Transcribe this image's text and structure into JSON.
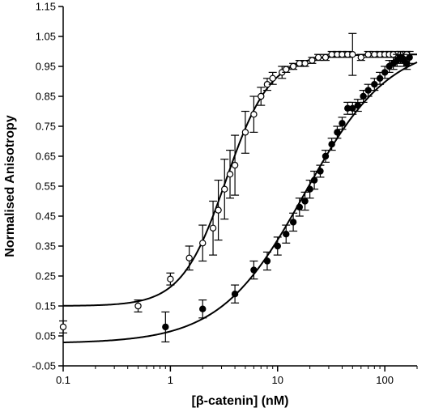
{
  "chart_data": {
    "type": "scatter",
    "title": "",
    "xlabel": "[β-catenin] (nM)",
    "ylabel": "Normalised Anisotropy",
    "xscale": "log",
    "xlim": [
      0.1,
      200
    ],
    "ylim": [
      -0.05,
      1.15
    ],
    "xticks": [
      0.1,
      1,
      10,
      100
    ],
    "xtick_labels": [
      "0.1",
      "1",
      "10",
      "100"
    ],
    "yticks": [
      -0.05,
      0.05,
      0.15,
      0.25,
      0.35,
      0.45,
      0.55,
      0.65,
      0.75,
      0.85,
      0.95,
      1.05,
      1.15
    ],
    "ytick_labels": [
      "-0.05",
      "0.05",
      "0.15",
      "0.25",
      "0.35",
      "0.45",
      "0.55",
      "0.65",
      "0.75",
      "0.85",
      "0.95",
      "1.05",
      "1.15"
    ],
    "grid": false,
    "legend": false,
    "series": [
      {
        "marker": "open-circle",
        "color": "#000000",
        "points": [
          {
            "x": 0.1,
            "y": 0.08,
            "err": 0.02
          },
          {
            "x": 0.5,
            "y": 0.15,
            "err": 0.02
          },
          {
            "x": 1.0,
            "y": 0.24,
            "err": 0.02
          },
          {
            "x": 1.5,
            "y": 0.31,
            "err": 0.04
          },
          {
            "x": 2.0,
            "y": 0.36,
            "err": 0.06
          },
          {
            "x": 2.5,
            "y": 0.41,
            "err": 0.09
          },
          {
            "x": 2.8,
            "y": 0.47,
            "err": 0.1
          },
          {
            "x": 3.2,
            "y": 0.54,
            "err": 0.1
          },
          {
            "x": 3.6,
            "y": 0.59,
            "err": 0.08
          },
          {
            "x": 4.0,
            "y": 0.62,
            "err": 0.1
          },
          {
            "x": 5.0,
            "y": 0.73,
            "err": 0.07
          },
          {
            "x": 6.0,
            "y": 0.79,
            "err": 0.06
          },
          {
            "x": 7.0,
            "y": 0.85,
            "err": 0.03
          },
          {
            "x": 8.0,
            "y": 0.89,
            "err": 0.02
          },
          {
            "x": 9.0,
            "y": 0.91,
            "err": 0.02
          },
          {
            "x": 11.0,
            "y": 0.93,
            "err": 0.02
          },
          {
            "x": 12.0,
            "y": 0.94,
            "err": 0.01
          },
          {
            "x": 14.0,
            "y": 0.95,
            "err": 0.01
          },
          {
            "x": 16.0,
            "y": 0.96,
            "err": 0.01
          },
          {
            "x": 18.0,
            "y": 0.96,
            "err": 0.01
          },
          {
            "x": 21.0,
            "y": 0.97,
            "err": 0.01
          },
          {
            "x": 24.0,
            "y": 0.98,
            "err": 0.01
          },
          {
            "x": 28.0,
            "y": 0.98,
            "err": 0.01
          },
          {
            "x": 32.0,
            "y": 0.99,
            "err": 0.01
          },
          {
            "x": 36.0,
            "y": 0.99,
            "err": 0.01
          },
          {
            "x": 40.0,
            "y": 0.99,
            "err": 0.01
          },
          {
            "x": 45.0,
            "y": 0.99,
            "err": 0.01
          },
          {
            "x": 50.0,
            "y": 0.99,
            "err": 0.07
          },
          {
            "x": 60.0,
            "y": 0.98,
            "err": 0.01
          },
          {
            "x": 70.0,
            "y": 0.99,
            "err": 0.01
          },
          {
            "x": 80.0,
            "y": 0.99,
            "err": 0.01
          },
          {
            "x": 90.0,
            "y": 0.99,
            "err": 0.01
          },
          {
            "x": 100.0,
            "y": 0.99,
            "err": 0.01
          },
          {
            "x": 110.0,
            "y": 0.99,
            "err": 0.01
          },
          {
            "x": 120.0,
            "y": 0.99,
            "err": 0.01
          },
          {
            "x": 140.0,
            "y": 0.99,
            "err": 0.01
          },
          {
            "x": 160.0,
            "y": 0.99,
            "err": 0.01
          }
        ]
      },
      {
        "marker": "filled-circle",
        "color": "#000000",
        "points": [
          {
            "x": 0.9,
            "y": 0.08,
            "err": 0.05
          },
          {
            "x": 2.0,
            "y": 0.14,
            "err": 0.03
          },
          {
            "x": 4.0,
            "y": 0.19,
            "err": 0.03
          },
          {
            "x": 6.0,
            "y": 0.27,
            "err": 0.03
          },
          {
            "x": 8.0,
            "y": 0.3,
            "err": 0.03
          },
          {
            "x": 10.0,
            "y": 0.35,
            "err": 0.03
          },
          {
            "x": 12.0,
            "y": 0.39,
            "err": 0.03
          },
          {
            "x": 14.0,
            "y": 0.43,
            "err": 0.03
          },
          {
            "x": 16.0,
            "y": 0.48,
            "err": 0.03
          },
          {
            "x": 18.0,
            "y": 0.5,
            "err": 0.03
          },
          {
            "x": 20.0,
            "y": 0.54,
            "err": 0.03
          },
          {
            "x": 22.0,
            "y": 0.57,
            "err": 0.03
          },
          {
            "x": 25.0,
            "y": 0.6,
            "err": 0.02
          },
          {
            "x": 28.0,
            "y": 0.65,
            "err": 0.02
          },
          {
            "x": 32.0,
            "y": 0.69,
            "err": 0.02
          },
          {
            "x": 36.0,
            "y": 0.73,
            "err": 0.02
          },
          {
            "x": 40.0,
            "y": 0.76,
            "err": 0.02
          },
          {
            "x": 45.0,
            "y": 0.81,
            "err": 0.02
          },
          {
            "x": 50.0,
            "y": 0.81,
            "err": 0.02
          },
          {
            "x": 56.0,
            "y": 0.82,
            "err": 0.02
          },
          {
            "x": 63.0,
            "y": 0.85,
            "err": 0.02
          },
          {
            "x": 70.0,
            "y": 0.87,
            "err": 0.02
          },
          {
            "x": 80.0,
            "y": 0.89,
            "err": 0.02
          },
          {
            "x": 90.0,
            "y": 0.91,
            "err": 0.02
          },
          {
            "x": 100.0,
            "y": 0.93,
            "err": 0.02
          },
          {
            "x": 110.0,
            "y": 0.95,
            "err": 0.02
          },
          {
            "x": 120.0,
            "y": 0.96,
            "err": 0.02
          },
          {
            "x": 130.0,
            "y": 0.97,
            "err": 0.02
          },
          {
            "x": 140.0,
            "y": 0.98,
            "err": 0.02
          },
          {
            "x": 150.0,
            "y": 0.97,
            "err": 0.02
          },
          {
            "x": 160.0,
            "y": 0.96,
            "err": 0.02
          },
          {
            "x": 170.0,
            "y": 0.98,
            "err": 0.02
          }
        ]
      }
    ],
    "fits": [
      {
        "for": "open-circle",
        "bottom": 0.15,
        "top": 0.99,
        "ec50": 3.3,
        "hill": 2.1
      },
      {
        "for": "filled-circle",
        "bottom": 0.025,
        "top": 1.03,
        "ec50": 18.0,
        "hill": 1.1
      }
    ]
  }
}
